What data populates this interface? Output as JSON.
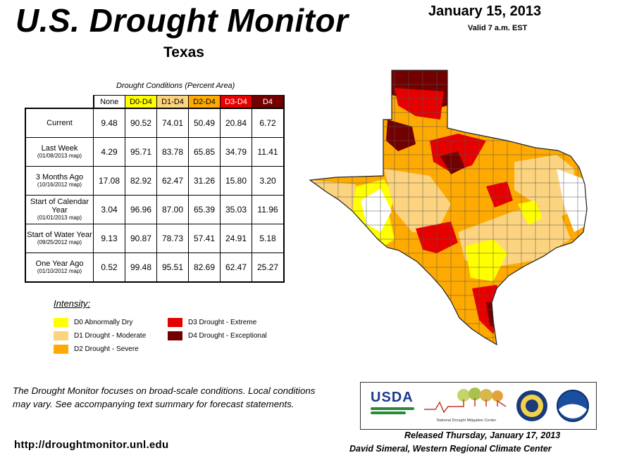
{
  "header": {
    "title": "U.S. Drought Monitor",
    "region": "Texas",
    "date": "January 15, 2013",
    "valid": "Valid 7 a.m. EST"
  },
  "table": {
    "caption": "Drought Conditions (Percent Area)",
    "columns": [
      "None",
      "D0-D4",
      "D1-D4",
      "D2-D4",
      "D3-D4",
      "D4"
    ],
    "rows": [
      {
        "label": "Current",
        "sub": "",
        "values": [
          "9.48",
          "90.52",
          "74.01",
          "50.49",
          "20.84",
          "6.72"
        ]
      },
      {
        "label": "Last Week",
        "sub": "(01/08/2013 map)",
        "values": [
          "4.29",
          "95.71",
          "83.78",
          "65.85",
          "34.79",
          "11.41"
        ]
      },
      {
        "label": "3 Months Ago",
        "sub": "(10/16/2012 map)",
        "values": [
          "17.08",
          "82.92",
          "62.47",
          "31.26",
          "15.80",
          "3.20"
        ]
      },
      {
        "label": "Start of Calendar Year",
        "sub": "(01/01/2013 map)",
        "values": [
          "3.04",
          "96.96",
          "87.00",
          "65.39",
          "35.03",
          "11.96"
        ]
      },
      {
        "label": "Start of Water Year",
        "sub": "(09/25/2012 map)",
        "values": [
          "9.13",
          "90.87",
          "78.73",
          "57.41",
          "24.91",
          "5.18"
        ]
      },
      {
        "label": "One Year Ago",
        "sub": "(01/10/2012 map)",
        "values": [
          "0.52",
          "99.48",
          "95.51",
          "82.69",
          "62.47",
          "25.27"
        ]
      }
    ]
  },
  "legend": {
    "title": "Intensity:",
    "items": [
      {
        "label": "D0 Abnormally Dry",
        "color": "#ffff00"
      },
      {
        "label": "D1 Drought - Moderate",
        "color": "#fcd37f"
      },
      {
        "label": "D2 Drought - Severe",
        "color": "#ffaa00"
      },
      {
        "label": "D3 Drought - Extreme",
        "color": "#e60000"
      },
      {
        "label": "D4 Drought - Exceptional",
        "color": "#730000"
      }
    ]
  },
  "colors": {
    "none": "#ffffff",
    "d0": "#ffff00",
    "d1": "#fcd37f",
    "d2": "#ffaa00",
    "d3": "#e60000",
    "d4": "#730000"
  },
  "footer": {
    "disclaimer": "The Drought Monitor focuses on broad-scale conditions. Local conditions may vary. See accompanying text summary for forecast statements.",
    "url": "http://droughtmonitor.unl.edu",
    "released": "Released Thursday, January 17, 2013",
    "author": "David Simeral, Western Regional Climate Center"
  },
  "logos": {
    "usda": "USDA",
    "ndmc": "National Drought Mitigation Center",
    "icons": [
      "usda-logo-icon",
      "ndmc-logo-icon",
      "commerce-seal-icon",
      "noaa-logo-icon"
    ]
  }
}
